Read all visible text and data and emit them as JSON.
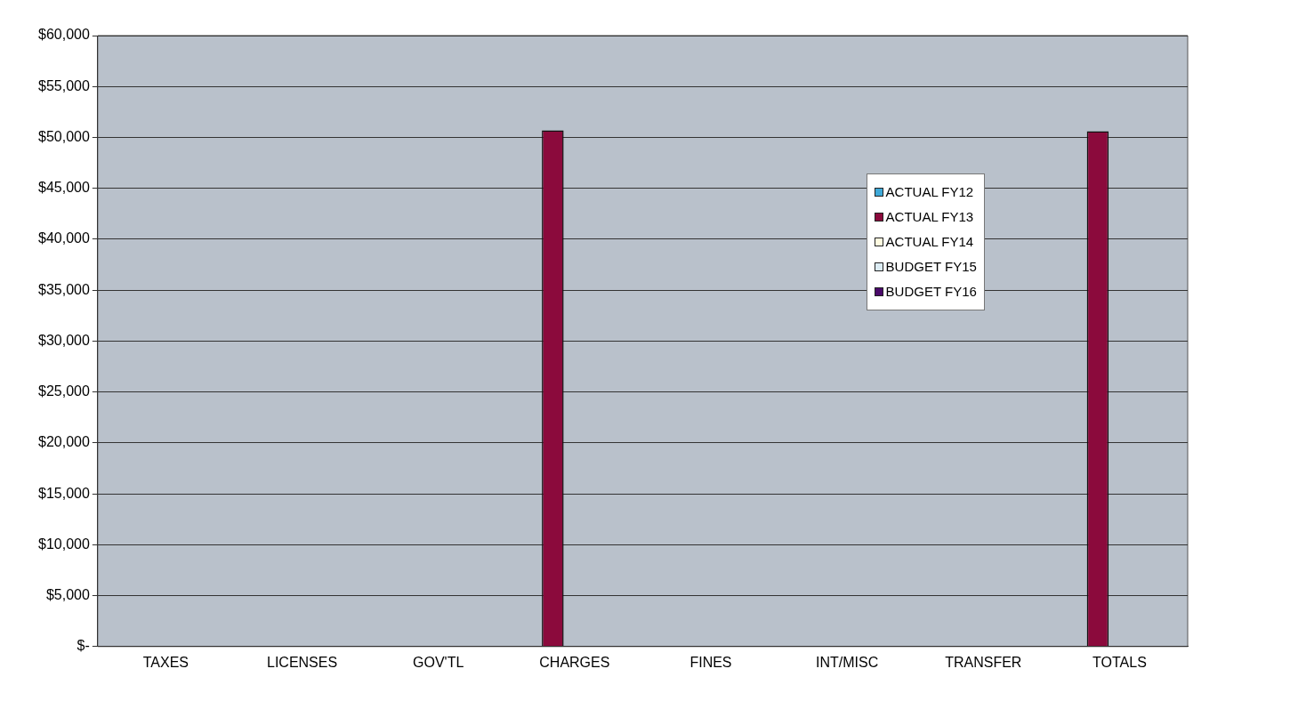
{
  "chart_data": {
    "type": "bar",
    "categories": [
      "TAXES",
      "LICENSES",
      "GOV'TL",
      "CHARGES",
      "FINES",
      "INT/MISC",
      "TRANSFER",
      "TOTALS"
    ],
    "series": [
      {
        "name": "ACTUAL FY12",
        "color": "#3fa9d8",
        "values": [
          0,
          0,
          0,
          0,
          0,
          0,
          0,
          0
        ]
      },
      {
        "name": "ACTUAL FY13",
        "color": "#8b0a3c",
        "values": [
          0,
          0,
          0,
          50700,
          0,
          0,
          0,
          50600
        ]
      },
      {
        "name": "ACTUAL FY14",
        "color": "#fffbe0",
        "values": [
          0,
          0,
          0,
          0,
          0,
          0,
          0,
          0
        ]
      },
      {
        "name": "BUDGET FY15",
        "color": "#dcecf4",
        "values": [
          0,
          0,
          0,
          0,
          0,
          0,
          0,
          0
        ]
      },
      {
        "name": "BUDGET FY16",
        "color": "#4a0a6a",
        "values": [
          0,
          0,
          0,
          0,
          0,
          0,
          0,
          0
        ]
      }
    ],
    "ylim": [
      0,
      60000
    ],
    "yticks": [
      {
        "value": 0,
        "label": "$-"
      },
      {
        "value": 5000,
        "label": "$5,000"
      },
      {
        "value": 10000,
        "label": "$10,000"
      },
      {
        "value": 15000,
        "label": "$15,000"
      },
      {
        "value": 20000,
        "label": "$20,000"
      },
      {
        "value": 25000,
        "label": "$25,000"
      },
      {
        "value": 30000,
        "label": "$30,000"
      },
      {
        "value": 35000,
        "label": "$35,000"
      },
      {
        "value": 40000,
        "label": "$40,000"
      },
      {
        "value": 45000,
        "label": "$45,000"
      },
      {
        "value": 50000,
        "label": "$50,000"
      },
      {
        "value": 55000,
        "label": "$55,000"
      },
      {
        "value": 60000,
        "label": "$60,000"
      }
    ],
    "grid": "y",
    "legend": "right"
  }
}
